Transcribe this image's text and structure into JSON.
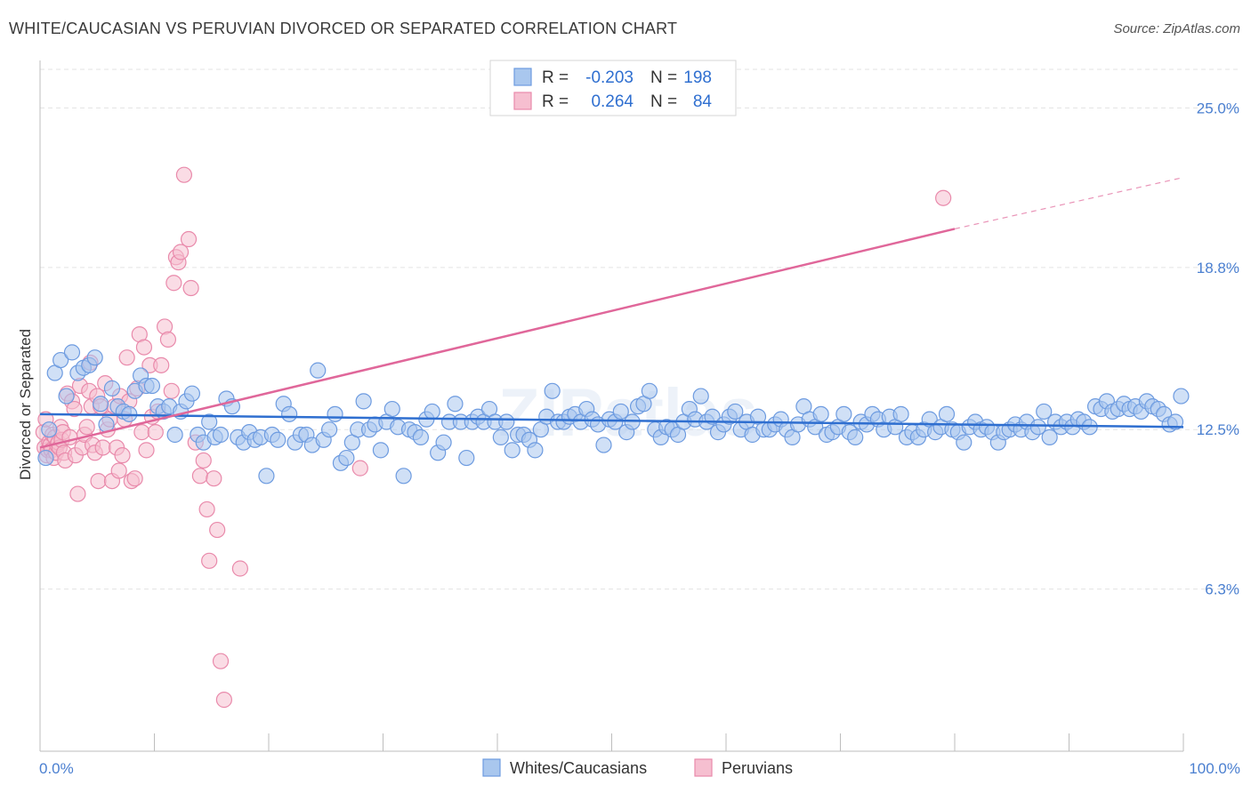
{
  "title": "WHITE/CAUCASIAN VS PERUVIAN DIVORCED OR SEPARATED CORRELATION CHART",
  "source": "Source: ZipAtlas.com",
  "watermark": "ZIPatlas",
  "colors": {
    "blue_fill": "#a9c7ee",
    "blue_stroke": "#6d9be0",
    "blue_line": "#2f6fd0",
    "pink_fill": "#f6bfd0",
    "pink_stroke": "#e98aab",
    "pink_line": "#e0679a",
    "tick_text": "#4a7fd0",
    "grid": "#e3e3e3"
  },
  "legend": {
    "r_label": "R =",
    "n_label": "N =",
    "blue_r": "-0.203",
    "blue_n": "198",
    "pink_r": "0.264",
    "pink_n": "84"
  },
  "chart_data": {
    "type": "scatter",
    "title": "WHITE/CAUCASIAN VS PERUVIAN DIVORCED OR SEPARATED CORRELATION CHART",
    "xlabel": "",
    "ylabel": "Divorced or Separated",
    "xlim": [
      0,
      100
    ],
    "ylim": [
      0,
      26.5
    ],
    "x_tick_labels": [
      "0.0%",
      "100.0%"
    ],
    "y_ticks": [
      6.3,
      12.5,
      18.8,
      25.0
    ],
    "y_tick_labels": [
      "6.3%",
      "12.5%",
      "18.8%",
      "25.0%"
    ],
    "grid": true,
    "series": [
      {
        "name": "Whites/Caucasians",
        "r": -0.203,
        "n": 198,
        "trend": {
          "x0": 0,
          "y0": 13.1,
          "x1": 100,
          "y1": 12.6
        },
        "points": [
          [
            0.5,
            11.4
          ],
          [
            0.8,
            12.5
          ],
          [
            1.3,
            14.7
          ],
          [
            1.8,
            15.2
          ],
          [
            2.3,
            13.8
          ],
          [
            2.8,
            15.5
          ],
          [
            3.3,
            14.7
          ],
          [
            3.8,
            14.9
          ],
          [
            4.3,
            15.0
          ],
          [
            4.8,
            15.3
          ],
          [
            5.3,
            13.5
          ],
          [
            5.8,
            12.7
          ],
          [
            6.3,
            14.1
          ],
          [
            6.8,
            13.4
          ],
          [
            7.3,
            13.2
          ],
          [
            7.8,
            13.1
          ],
          [
            8.3,
            14.0
          ],
          [
            8.8,
            14.6
          ],
          [
            9.3,
            14.2
          ],
          [
            9.8,
            14.2
          ],
          [
            10.3,
            13.4
          ],
          [
            10.8,
            13.2
          ],
          [
            11.3,
            13.4
          ],
          [
            11.8,
            12.3
          ],
          [
            12.3,
            13.2
          ],
          [
            12.8,
            13.6
          ],
          [
            13.3,
            13.9
          ],
          [
            13.8,
            12.3
          ],
          [
            14.3,
            12.0
          ],
          [
            14.8,
            12.8
          ],
          [
            15.3,
            12.2
          ],
          [
            15.8,
            12.3
          ],
          [
            16.3,
            13.7
          ],
          [
            16.8,
            13.4
          ],
          [
            17.3,
            12.2
          ],
          [
            17.8,
            12.0
          ],
          [
            18.3,
            12.4
          ],
          [
            18.8,
            12.1
          ],
          [
            19.3,
            12.2
          ],
          [
            19.8,
            10.7
          ],
          [
            20.3,
            12.3
          ],
          [
            20.8,
            12.1
          ],
          [
            21.3,
            13.5
          ],
          [
            21.8,
            13.1
          ],
          [
            22.3,
            12.0
          ],
          [
            22.8,
            12.3
          ],
          [
            23.3,
            12.3
          ],
          [
            23.8,
            11.9
          ],
          [
            24.3,
            14.8
          ],
          [
            24.8,
            12.1
          ],
          [
            25.3,
            12.5
          ],
          [
            25.8,
            13.1
          ],
          [
            26.3,
            11.2
          ],
          [
            26.8,
            11.4
          ],
          [
            27.3,
            12.0
          ],
          [
            27.8,
            12.5
          ],
          [
            28.3,
            13.6
          ],
          [
            28.8,
            12.5
          ],
          [
            29.3,
            12.7
          ],
          [
            29.8,
            11.7
          ],
          [
            30.3,
            12.8
          ],
          [
            30.8,
            13.3
          ],
          [
            31.3,
            12.6
          ],
          [
            31.8,
            10.7
          ],
          [
            32.3,
            12.5
          ],
          [
            32.8,
            12.4
          ],
          [
            33.3,
            12.2
          ],
          [
            33.8,
            12.9
          ],
          [
            34.3,
            13.2
          ],
          [
            34.8,
            11.6
          ],
          [
            35.3,
            12.0
          ],
          [
            35.8,
            12.8
          ],
          [
            36.3,
            13.5
          ],
          [
            36.8,
            12.8
          ],
          [
            37.3,
            11.4
          ],
          [
            37.8,
            12.8
          ],
          [
            38.3,
            13.0
          ],
          [
            38.8,
            12.8
          ],
          [
            39.3,
            13.3
          ],
          [
            39.8,
            12.8
          ],
          [
            40.3,
            12.2
          ],
          [
            40.8,
            12.8
          ],
          [
            41.3,
            11.7
          ],
          [
            41.8,
            12.3
          ],
          [
            42.3,
            12.3
          ],
          [
            42.8,
            12.1
          ],
          [
            43.3,
            11.7
          ],
          [
            43.8,
            12.5
          ],
          [
            44.3,
            13.0
          ],
          [
            44.8,
            14.0
          ],
          [
            45.3,
            12.8
          ],
          [
            45.8,
            12.8
          ],
          [
            46.3,
            13.0
          ],
          [
            46.8,
            13.1
          ],
          [
            47.3,
            12.8
          ],
          [
            47.8,
            13.3
          ],
          [
            48.3,
            12.9
          ],
          [
            48.8,
            12.7
          ],
          [
            49.3,
            11.9
          ],
          [
            49.8,
            12.9
          ],
          [
            50.3,
            12.8
          ],
          [
            50.8,
            13.2
          ],
          [
            51.3,
            12.4
          ],
          [
            51.8,
            12.8
          ],
          [
            52.3,
            13.4
          ],
          [
            52.8,
            13.5
          ],
          [
            53.3,
            14.0
          ],
          [
            53.8,
            12.5
          ],
          [
            54.3,
            12.2
          ],
          [
            54.8,
            12.6
          ],
          [
            55.3,
            12.5
          ],
          [
            55.8,
            12.3
          ],
          [
            56.3,
            12.8
          ],
          [
            56.8,
            13.3
          ],
          [
            57.3,
            12.9
          ],
          [
            57.8,
            13.8
          ],
          [
            58.3,
            12.8
          ],
          [
            58.8,
            13.0
          ],
          [
            59.3,
            12.4
          ],
          [
            59.8,
            12.7
          ],
          [
            60.3,
            13.0
          ],
          [
            60.8,
            13.2
          ],
          [
            61.3,
            12.5
          ],
          [
            61.8,
            12.8
          ],
          [
            62.3,
            12.3
          ],
          [
            62.8,
            13.0
          ],
          [
            63.3,
            12.5
          ],
          [
            63.8,
            12.5
          ],
          [
            64.3,
            12.7
          ],
          [
            64.8,
            12.9
          ],
          [
            65.3,
            12.5
          ],
          [
            65.8,
            12.2
          ],
          [
            66.3,
            12.7
          ],
          [
            66.8,
            13.4
          ],
          [
            67.3,
            12.9
          ],
          [
            67.8,
            12.6
          ],
          [
            68.3,
            13.1
          ],
          [
            68.8,
            12.3
          ],
          [
            69.3,
            12.4
          ],
          [
            69.8,
            12.6
          ],
          [
            70.3,
            13.1
          ],
          [
            70.8,
            12.4
          ],
          [
            71.3,
            12.2
          ],
          [
            71.8,
            12.8
          ],
          [
            72.3,
            12.7
          ],
          [
            72.8,
            13.1
          ],
          [
            73.3,
            12.9
          ],
          [
            73.8,
            12.5
          ],
          [
            74.3,
            13.0
          ],
          [
            74.8,
            12.6
          ],
          [
            75.3,
            13.1
          ],
          [
            75.8,
            12.2
          ],
          [
            76.3,
            12.4
          ],
          [
            76.8,
            12.2
          ],
          [
            77.3,
            12.5
          ],
          [
            77.8,
            12.9
          ],
          [
            78.3,
            12.4
          ],
          [
            78.8,
            12.6
          ],
          [
            79.3,
            13.1
          ],
          [
            79.8,
            12.5
          ],
          [
            80.3,
            12.4
          ],
          [
            80.8,
            12.0
          ],
          [
            81.3,
            12.6
          ],
          [
            81.8,
            12.8
          ],
          [
            82.3,
            12.5
          ],
          [
            82.8,
            12.6
          ],
          [
            83.3,
            12.4
          ],
          [
            83.8,
            12.0
          ],
          [
            84.3,
            12.4
          ],
          [
            84.8,
            12.5
          ],
          [
            85.3,
            12.7
          ],
          [
            85.8,
            12.5
          ],
          [
            86.3,
            12.8
          ],
          [
            86.8,
            12.4
          ],
          [
            87.3,
            12.6
          ],
          [
            87.8,
            13.2
          ],
          [
            88.3,
            12.2
          ],
          [
            88.8,
            12.8
          ],
          [
            89.3,
            12.6
          ],
          [
            89.8,
            12.8
          ],
          [
            90.3,
            12.6
          ],
          [
            90.8,
            12.9
          ],
          [
            91.3,
            12.8
          ],
          [
            91.8,
            12.6
          ],
          [
            92.3,
            13.4
          ],
          [
            92.8,
            13.3
          ],
          [
            93.3,
            13.6
          ],
          [
            93.8,
            13.2
          ],
          [
            94.3,
            13.3
          ],
          [
            94.8,
            13.5
          ],
          [
            95.3,
            13.3
          ],
          [
            95.8,
            13.4
          ],
          [
            96.3,
            13.2
          ],
          [
            96.8,
            13.6
          ],
          [
            97.3,
            13.4
          ],
          [
            97.8,
            13.3
          ],
          [
            98.3,
            13.1
          ],
          [
            98.8,
            12.7
          ],
          [
            99.3,
            12.8
          ],
          [
            99.8,
            13.8
          ]
        ]
      },
      {
        "name": "Peruvians",
        "r": 0.264,
        "n": 84,
        "trend": {
          "x0": 0,
          "y0": 11.8,
          "x1": 80,
          "y1": 20.3,
          "dash_x1": 100,
          "dash_y1": 22.3
        },
        "points": [
          [
            0.3,
            12.4
          ],
          [
            0.4,
            11.8
          ],
          [
            0.5,
            12.9
          ],
          [
            0.6,
            11.5
          ],
          [
            0.7,
            11.7
          ],
          [
            0.8,
            12.0
          ],
          [
            0.9,
            11.9
          ],
          [
            1.0,
            11.7
          ],
          [
            1.1,
            12.3
          ],
          [
            1.2,
            11.4
          ],
          [
            1.3,
            12.2
          ],
          [
            1.4,
            11.6
          ],
          [
            1.5,
            11.9
          ],
          [
            1.6,
            12.0
          ],
          [
            1.7,
            11.8
          ],
          [
            1.8,
            12.6
          ],
          [
            1.9,
            12.1
          ],
          [
            2.0,
            12.4
          ],
          [
            2.1,
            11.6
          ],
          [
            2.2,
            11.3
          ],
          [
            2.4,
            13.9
          ],
          [
            2.6,
            12.2
          ],
          [
            2.8,
            13.6
          ],
          [
            3.0,
            13.3
          ],
          [
            3.1,
            11.5
          ],
          [
            3.3,
            10.0
          ],
          [
            3.5,
            14.2
          ],
          [
            3.7,
            11.8
          ],
          [
            3.9,
            12.3
          ],
          [
            4.1,
            12.6
          ],
          [
            4.3,
            14.0
          ],
          [
            4.4,
            15.1
          ],
          [
            4.5,
            13.4
          ],
          [
            4.6,
            11.9
          ],
          [
            4.8,
            11.6
          ],
          [
            5.0,
            13.8
          ],
          [
            5.1,
            10.5
          ],
          [
            5.3,
            13.4
          ],
          [
            5.5,
            11.8
          ],
          [
            5.7,
            14.3
          ],
          [
            5.9,
            12.5
          ],
          [
            6.1,
            12.9
          ],
          [
            6.3,
            10.5
          ],
          [
            6.5,
            13.4
          ],
          [
            6.7,
            11.8
          ],
          [
            6.9,
            10.9
          ],
          [
            7.0,
            13.8
          ],
          [
            7.2,
            11.5
          ],
          [
            7.4,
            12.9
          ],
          [
            7.6,
            15.3
          ],
          [
            7.8,
            13.6
          ],
          [
            8.0,
            10.5
          ],
          [
            8.3,
            10.6
          ],
          [
            8.5,
            14.1
          ],
          [
            8.7,
            16.2
          ],
          [
            8.9,
            12.4
          ],
          [
            9.1,
            15.7
          ],
          [
            9.3,
            11.7
          ],
          [
            9.6,
            15.0
          ],
          [
            9.8,
            13.0
          ],
          [
            10.1,
            12.4
          ],
          [
            10.3,
            13.2
          ],
          [
            10.6,
            15.0
          ],
          [
            10.9,
            16.5
          ],
          [
            11.2,
            16.0
          ],
          [
            11.5,
            14.0
          ],
          [
            11.7,
            18.2
          ],
          [
            11.9,
            19.2
          ],
          [
            12.1,
            19.0
          ],
          [
            12.3,
            19.4
          ],
          [
            12.6,
            22.4
          ],
          [
            13.0,
            19.9
          ],
          [
            13.2,
            18.0
          ],
          [
            13.6,
            12.0
          ],
          [
            14.0,
            10.7
          ],
          [
            14.3,
            11.3
          ],
          [
            14.6,
            9.4
          ],
          [
            14.8,
            7.4
          ],
          [
            15.2,
            10.6
          ],
          [
            15.5,
            8.6
          ],
          [
            15.8,
            3.5
          ],
          [
            16.1,
            2.0
          ],
          [
            17.5,
            7.1
          ],
          [
            28.0,
            11.0
          ],
          [
            79.0,
            21.5
          ]
        ]
      }
    ]
  }
}
